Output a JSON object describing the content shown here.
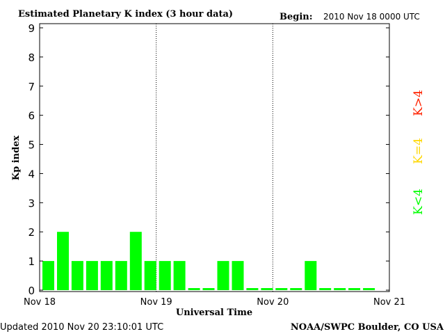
{
  "chart_data": {
    "type": "bar",
    "title": "Estimated Planetary K index (3 hour data)",
    "begin_label": "Begin:",
    "begin_value": "2010 Nov 18 0000 UTC",
    "ylabel": "Kp index",
    "xlabel": "Universal Time",
    "ylim": [
      0,
      9
    ],
    "yticks": [
      "0",
      "1",
      "2",
      "3",
      "4",
      "5",
      "6",
      "7",
      "8",
      "9"
    ],
    "x_ticks": [
      "Nov 18",
      "Nov 19",
      "Nov 20",
      "Nov 21"
    ],
    "values": [
      1,
      2,
      1,
      1,
      1,
      1,
      2,
      1,
      1,
      1,
      0,
      0,
      1,
      1,
      0,
      0,
      0,
      0,
      1,
      0,
      0,
      0,
      0
    ],
    "bar_color": "#00ff00",
    "day_separators": "dotted",
    "legend": [
      {
        "label": "K<4",
        "color": "#00ff00"
      },
      {
        "label": "K=4",
        "color": "#ffd700"
      },
      {
        "label": "K>4",
        "color": "#ff2200"
      }
    ],
    "footer_left": "Updated 2010 Nov 20 23:10:01 UTC",
    "footer_right": "NOAA/SWPC Boulder, CO USA"
  }
}
